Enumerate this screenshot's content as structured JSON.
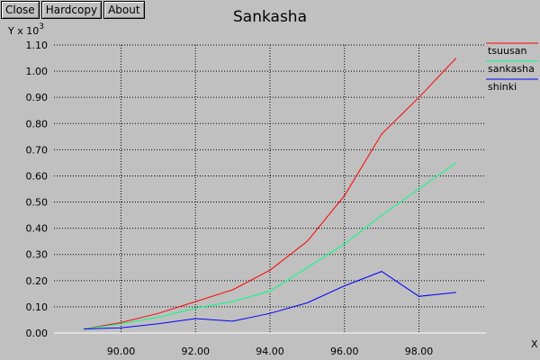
{
  "toolbar": {
    "close_label": "Close",
    "hardcopy_label": "Hardcopy",
    "about_label": "About"
  },
  "chart_data": {
    "type": "line",
    "title": "Sankasha",
    "ylabel": "Y x 10",
    "ylabel_exponent": "3",
    "xlabel": "X",
    "xlim": [
      88.2,
      99.8
    ],
    "ylim": [
      0.0,
      1.1
    ],
    "xticks": [
      90,
      92,
      94,
      96,
      98
    ],
    "yticks": [
      0.0,
      0.1,
      0.2,
      0.3,
      0.4,
      0.5,
      0.6,
      0.7,
      0.8,
      0.9,
      1.0,
      1.1
    ],
    "grid": true,
    "grid_x_at": [
      90,
      92,
      94,
      96,
      98
    ],
    "legend_position": "right",
    "x": [
      89,
      90,
      91,
      92,
      93,
      94,
      95,
      96,
      97,
      98,
      99
    ],
    "series": [
      {
        "name": "tsuusan",
        "color": "#ff0000",
        "values": [
          0.015,
          0.04,
          0.075,
          0.12,
          0.165,
          0.24,
          0.35,
          0.525,
          0.76,
          0.9,
          1.05
        ]
      },
      {
        "name": "sankasha",
        "color": "#00ff80",
        "values": [
          0.015,
          0.035,
          0.06,
          0.095,
          0.12,
          0.16,
          0.25,
          0.34,
          0.45,
          0.55,
          0.65
        ]
      },
      {
        "name": "shinki",
        "color": "#0000ff",
        "values": [
          0.015,
          0.02,
          0.035,
          0.055,
          0.045,
          0.075,
          0.115,
          0.18,
          0.235,
          0.14,
          0.155
        ]
      }
    ]
  }
}
